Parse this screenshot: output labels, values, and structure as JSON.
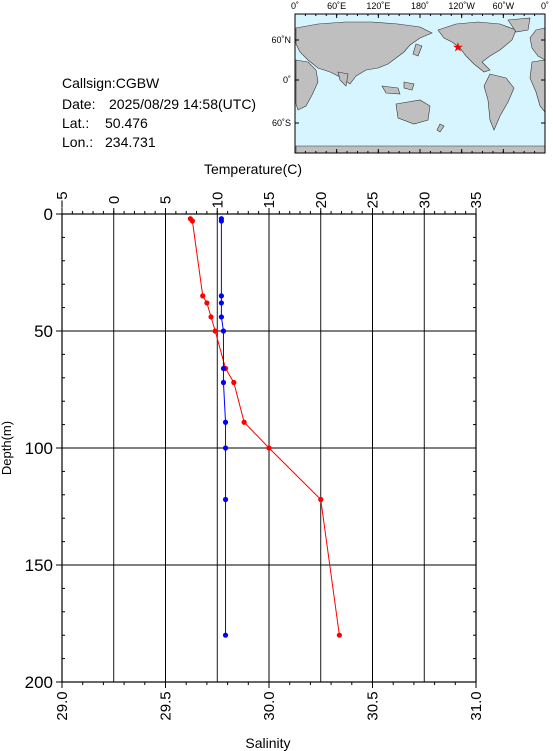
{
  "station": {
    "callsign_label": "Callsign:",
    "callsign": "CGBW",
    "date_label": "Date:",
    "date": "2025/08/29 14:58(UTC)",
    "lat_label": "Lat.:",
    "lat": "50.476",
    "lon_label": "Lon.:",
    "lon": "234.731"
  },
  "map": {
    "top_labels": [
      "0˚",
      "60˚E",
      "120˚E",
      "180˚",
      "120˚W",
      "60˚W",
      "0˚"
    ],
    "left_labels": [
      "60˚N",
      "0˚",
      "60˚S"
    ],
    "ocean_color": "#d6f5ff",
    "land_color": "#bfbfbf",
    "marker_color": "#ff0000",
    "marker_symbol": "★"
  },
  "chart_data": {
    "type": "line",
    "title": "",
    "ylabel": "Depth(m)",
    "ylim": [
      200,
      0
    ],
    "yticks": [
      "0",
      "50",
      "100",
      "150",
      "200"
    ],
    "grid": true,
    "top_axis": {
      "label": "Temperature(C)",
      "range": [
        -5,
        35
      ],
      "ticks": [
        "−5",
        "0",
        "5",
        "10",
        "15",
        "20",
        "25",
        "30",
        "35"
      ]
    },
    "bottom_axis": {
      "label": "Salinity",
      "range": [
        29.0,
        31.0
      ],
      "ticks": [
        "29.0",
        "29.5",
        "30.0",
        "30.5",
        "31.0"
      ]
    },
    "series": [
      {
        "axis": "temperature",
        "color": "#ff0000",
        "points": [
          {
            "x": 7.4,
            "y": 2
          },
          {
            "x": 7.6,
            "y": 3
          },
          {
            "x": 8.6,
            "y": 35
          },
          {
            "x": 9.0,
            "y": 38
          },
          {
            "x": 9.4,
            "y": 44
          },
          {
            "x": 9.8,
            "y": 50
          },
          {
            "x": 10.8,
            "y": 66
          },
          {
            "x": 11.6,
            "y": 72
          },
          {
            "x": 12.6,
            "y": 89
          },
          {
            "x": 15.0,
            "y": 100
          },
          {
            "x": 20.0,
            "y": 122
          },
          {
            "x": 21.8,
            "y": 180
          }
        ]
      },
      {
        "axis": "salinity",
        "color": "#0000ff",
        "points": [
          {
            "x": 29.77,
            "y": 2
          },
          {
            "x": 29.77,
            "y": 3
          },
          {
            "x": 29.77,
            "y": 35
          },
          {
            "x": 29.77,
            "y": 38
          },
          {
            "x": 29.77,
            "y": 44
          },
          {
            "x": 29.78,
            "y": 50
          },
          {
            "x": 29.78,
            "y": 66
          },
          {
            "x": 29.78,
            "y": 72
          },
          {
            "x": 29.79,
            "y": 89
          },
          {
            "x": 29.79,
            "y": 100
          },
          {
            "x": 29.79,
            "y": 122
          },
          {
            "x": 29.79,
            "y": 180
          }
        ]
      }
    ]
  }
}
